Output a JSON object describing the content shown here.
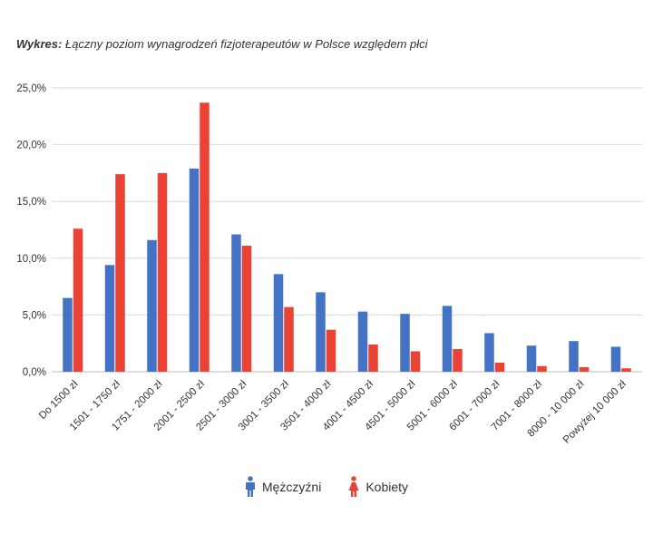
{
  "title": {
    "prefix": "Wykres:",
    "text": "Łączny poziom wynagrodzeń fizjoterapeutów w Polsce względem płci"
  },
  "legend": {
    "men_label": "Mężczyźni",
    "women_label": "Kobiety",
    "men_icon": "male-person-icon",
    "women_icon": "female-person-icon"
  },
  "colors": {
    "men": "#4472C4",
    "women": "#EA4335",
    "grid": "#d9d9d9",
    "axis_text": "#333333"
  },
  "chart_data": {
    "type": "bar",
    "title": "Łączny poziom wynagrodzeń fizjoterapeutów w Polsce względem płci",
    "xlabel": "",
    "ylabel": "",
    "ylim": [
      0,
      25
    ],
    "yticks": [
      0,
      5,
      10,
      15,
      20,
      25
    ],
    "ytick_labels": [
      "0,0%",
      "5,0%",
      "10,0%",
      "15,0%",
      "20,0%",
      "25,0%"
    ],
    "grid": true,
    "legend_position": "bottom",
    "categories": [
      "Do 1500 zł",
      "1501 - 1750 zł",
      "1751 - 2000 zł",
      "2001 - 2500 zł",
      "2501 - 3000 zł",
      "3001 - 3500 zł",
      "3501 - 4000 zł",
      "4001 - 4500 zł",
      "4501 - 5000 zł",
      "5001 - 6000 zł",
      "6001 - 7000 zł",
      "7001 - 8000 zł",
      "8000 - 10 000 zł",
      "Powyżej 10 000 zł"
    ],
    "series": [
      {
        "name": "Mężczyźni",
        "color": "#4472C4",
        "values": [
          6.5,
          9.4,
          11.6,
          17.9,
          12.1,
          8.6,
          7.0,
          5.3,
          5.1,
          5.8,
          3.4,
          2.3,
          2.7,
          2.2
        ]
      },
      {
        "name": "Kobiety",
        "color": "#EA4335",
        "values": [
          12.6,
          17.4,
          17.5,
          23.7,
          11.1,
          5.7,
          3.7,
          2.4,
          1.8,
          2.0,
          0.8,
          0.5,
          0.4,
          0.3
        ]
      }
    ]
  }
}
